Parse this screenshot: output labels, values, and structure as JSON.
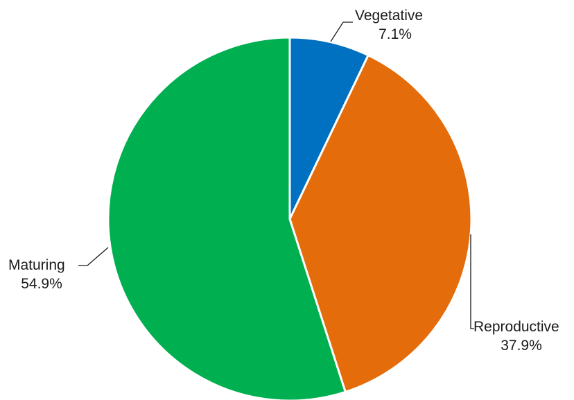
{
  "chart_data": {
    "type": "pie",
    "title": "",
    "slices": [
      {
        "name": "Vegetative",
        "value": 7.1,
        "label": "7.1%",
        "color": "#0070c0"
      },
      {
        "name": "Reproductive",
        "value": 37.9,
        "label": "37.9%",
        "color": "#e46c0a"
      },
      {
        "name": "Maturing",
        "value": 54.9,
        "label": "54.9%",
        "color": "#00b050"
      }
    ],
    "start_angle_deg": 0,
    "direction": "clockwise",
    "legend": "none"
  }
}
